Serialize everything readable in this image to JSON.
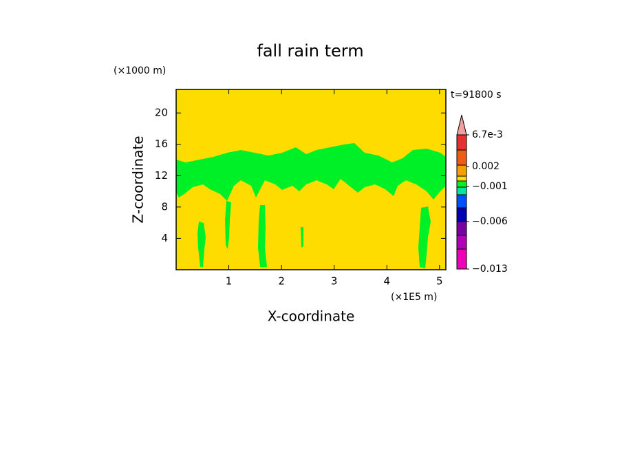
{
  "chart_data": {
    "type": "contour",
    "title": "fall rain term",
    "x_label": "X-coordinate",
    "y_label": "Z-coordinate",
    "x_unit": "(×1E5 m)",
    "y_unit": "(×1000 m)",
    "time_label": "t=91800 s",
    "xlim": [
      0,
      5.12
    ],
    "ylim": [
      0,
      23
    ],
    "xticks": [
      1,
      2,
      3,
      4,
      5
    ],
    "yticks": [
      4,
      8,
      12,
      16,
      20
    ],
    "field_color": "#ffdc00",
    "anomaly_color": "#00f028",
    "colorbar_colors": [
      "#f0a0a0",
      "#e63030",
      "#f05a14",
      "#f0a000",
      "#ffdc00",
      "#00f028",
      "#00e6a0",
      "#0050ff",
      "#0000b4",
      "#7800a0",
      "#b400b4",
      "#f000b4"
    ],
    "colorbar_labels": [
      {
        "value": 0.0067,
        "label": "6.7e-3"
      },
      {
        "value": 0.002,
        "label": "0.002"
      },
      {
        "value": -0.001,
        "label": "−0.001"
      },
      {
        "value": -0.006,
        "label": "−0.006"
      },
      {
        "value": -0.013,
        "label": "−0.013"
      }
    ]
  }
}
